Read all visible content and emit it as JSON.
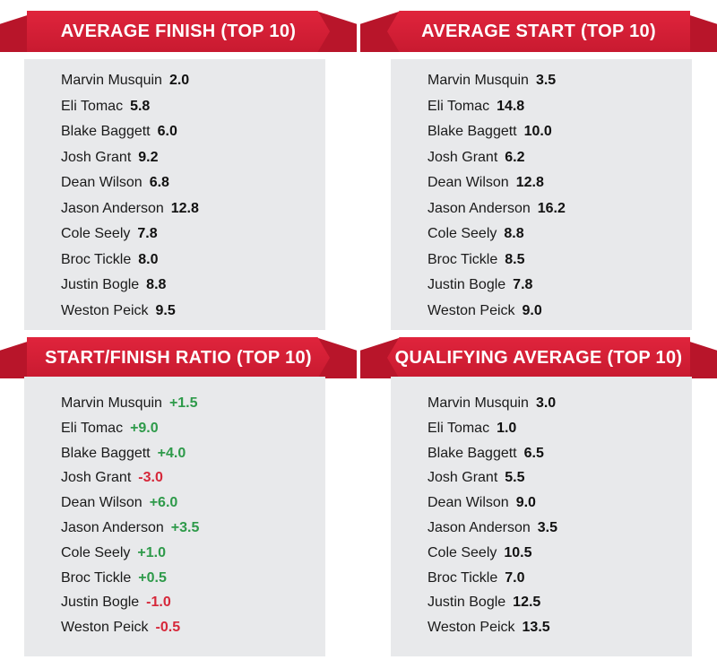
{
  "panels": [
    {
      "title": "AVERAGE FINISH (TOP 10)",
      "rows": [
        {
          "name": "Marvin Musquin",
          "value": "2.0"
        },
        {
          "name": "Eli Tomac",
          "value": "5.8"
        },
        {
          "name": "Blake Baggett",
          "value": "6.0"
        },
        {
          "name": "Josh Grant",
          "value": "9.2"
        },
        {
          "name": "Dean Wilson",
          "value": "6.8"
        },
        {
          "name": "Jason Anderson",
          "value": "12.8"
        },
        {
          "name": "Cole Seely",
          "value": "7.8"
        },
        {
          "name": "Broc Tickle",
          "value": "8.0"
        },
        {
          "name": "Justin Bogle",
          "value": "8.8"
        },
        {
          "name": "Weston Peick",
          "value": "9.5"
        }
      ]
    },
    {
      "title": "AVERAGE START (TOP 10)",
      "rows": [
        {
          "name": "Marvin Musquin",
          "value": "3.5"
        },
        {
          "name": "Eli Tomac",
          "value": "14.8"
        },
        {
          "name": "Blake Baggett",
          "value": "10.0"
        },
        {
          "name": "Josh Grant",
          "value": "6.2"
        },
        {
          "name": "Dean Wilson",
          "value": "12.8"
        },
        {
          "name": "Jason Anderson",
          "value": "16.2"
        },
        {
          "name": "Cole Seely",
          "value": "8.8"
        },
        {
          "name": "Broc Tickle",
          "value": "8.5"
        },
        {
          "name": "Justin Bogle",
          "value": "7.8"
        },
        {
          "name": "Weston Peick",
          "value": "9.0"
        }
      ]
    },
    {
      "title": "START/FINISH RATIO (TOP 10)",
      "rows": [
        {
          "name": "Marvin Musquin",
          "value": "+1.5",
          "tone": "pos"
        },
        {
          "name": "Eli Tomac",
          "value": "+9.0",
          "tone": "pos"
        },
        {
          "name": "Blake Baggett",
          "value": "+4.0",
          "tone": "pos"
        },
        {
          "name": "Josh Grant",
          "value": "-3.0",
          "tone": "neg"
        },
        {
          "name": "Dean Wilson",
          "value": "+6.0",
          "tone": "pos"
        },
        {
          "name": "Jason Anderson",
          "value": "+3.5",
          "tone": "pos"
        },
        {
          "name": "Cole Seely",
          "value": "+1.0",
          "tone": "pos"
        },
        {
          "name": "Broc Tickle",
          "value": "+0.5",
          "tone": "pos"
        },
        {
          "name": "Justin Bogle",
          "value": "-1.0",
          "tone": "neg"
        },
        {
          "name": "Weston Peick",
          "value": "-0.5",
          "tone": "neg"
        }
      ]
    },
    {
      "title": "QUALIFYING AVERAGE (TOP 10)",
      "rows": [
        {
          "name": "Marvin Musquin",
          "value": "3.0"
        },
        {
          "name": "Eli Tomac",
          "value": "1.0"
        },
        {
          "name": "Blake Baggett",
          "value": "6.5"
        },
        {
          "name": "Josh Grant",
          "value": "5.5"
        },
        {
          "name": "Dean Wilson",
          "value": "9.0"
        },
        {
          "name": "Jason Anderson",
          "value": "3.5"
        },
        {
          "name": "Cole Seely",
          "value": "10.5"
        },
        {
          "name": "Broc Tickle",
          "value": "7.0"
        },
        {
          "name": "Justin Bogle",
          "value": "12.5"
        },
        {
          "name": "Weston Peick",
          "value": "13.5"
        }
      ]
    }
  ],
  "colors": {
    "banner_red": "#d81f36",
    "panel_gray": "#e8e9eb",
    "positive_green": "#2e9a4a",
    "negative_red": "#d6283a"
  }
}
